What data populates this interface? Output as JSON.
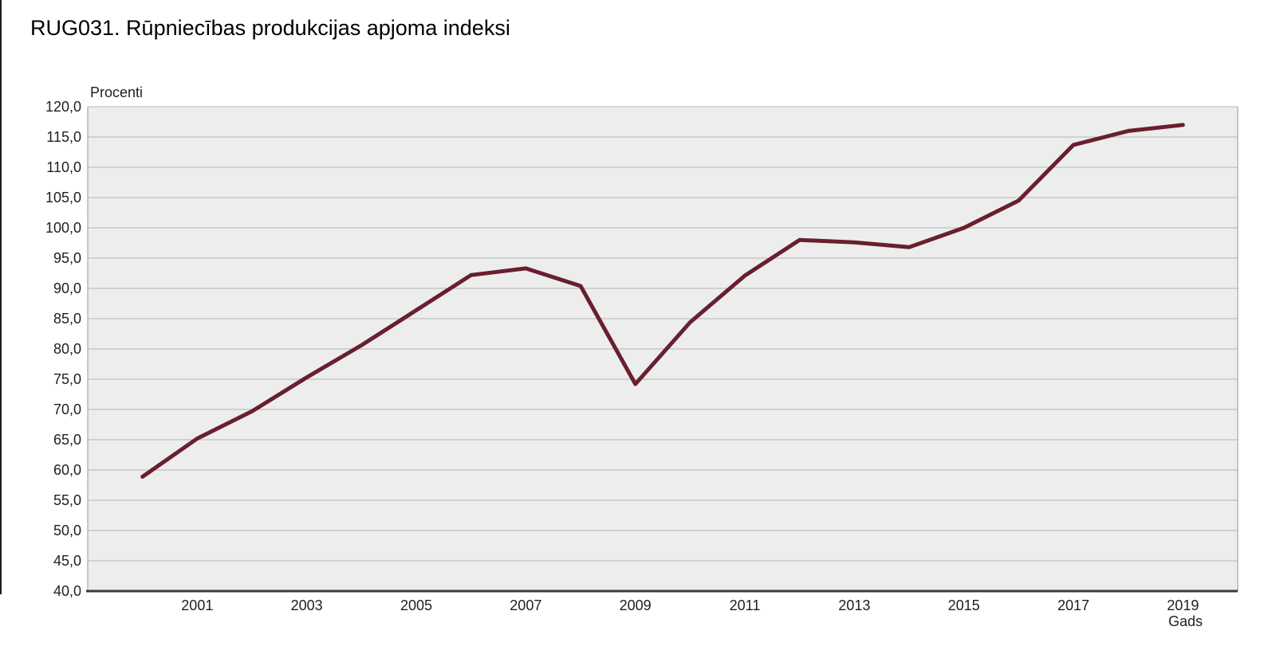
{
  "page_title": "RUG031. Rūpniecības produkcijas apjoma indeksi",
  "chart_data": {
    "type": "line",
    "title": "RUG031. Rūpniecības produkcijas apjoma indeksi",
    "ylabel": "Procenti",
    "xlabel": "Gads",
    "x": [
      2000,
      2001,
      2002,
      2003,
      2004,
      2005,
      2006,
      2007,
      2008,
      2009,
      2010,
      2011,
      2012,
      2013,
      2014,
      2015,
      2016,
      2017,
      2018,
      2019
    ],
    "values": [
      58.9,
      65.2,
      69.7,
      75.3,
      80.6,
      86.4,
      92.2,
      93.3,
      90.4,
      74.2,
      84.4,
      92.1,
      98.0,
      97.6,
      96.8,
      100.0,
      104.5,
      113.7,
      116.0,
      117.0
    ],
    "ylim": [
      40,
      120
    ],
    "ytick_step": 5,
    "y_tick_labels": [
      "120,0",
      "115,0",
      "110,0",
      "105,0",
      "100,0",
      "95,0",
      "90,0",
      "85,0",
      "80,0",
      "75,0",
      "70,0",
      "65,0",
      "60,0",
      "55,0",
      "50,0",
      "45,0",
      "40,0"
    ],
    "x_tick_years": [
      2001,
      2003,
      2005,
      2007,
      2009,
      2011,
      2013,
      2015,
      2017,
      2019
    ],
    "x_tick_labels": [
      "2001",
      "2003",
      "2005",
      "2007",
      "2009",
      "2011",
      "2013",
      "2015",
      "2017",
      "2019"
    ],
    "x_domain": [
      1999,
      2020
    ],
    "grid": true,
    "legend": false,
    "colors": {
      "line": "#681f2e",
      "plot_background": "#ededed",
      "gridline": "#b5b5b5",
      "axis": "#3b3b3b",
      "plot_border": "#9a9a9a",
      "text": "#1f1f1f"
    }
  }
}
